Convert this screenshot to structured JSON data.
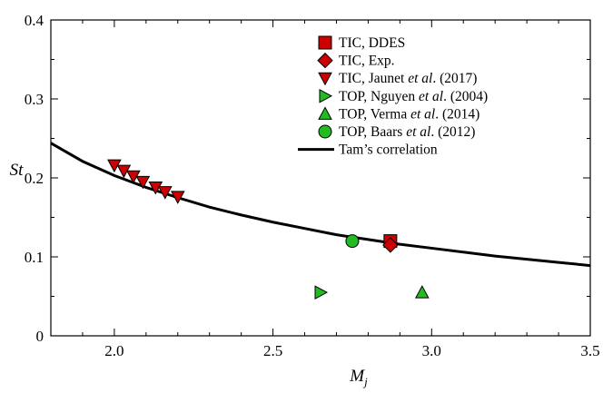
{
  "chart_data": {
    "type": "scatter",
    "xlabel": "M",
    "xlabel_sub": "j",
    "ylabel": "St",
    "xlim": [
      1.8,
      3.5
    ],
    "ylim": [
      0,
      0.4
    ],
    "x_ticks": [
      2.0,
      2.5,
      3.0,
      3.5
    ],
    "x_tick_labels": [
      "2.0",
      "2.5",
      "3.0",
      "3.5"
    ],
    "y_ticks": [
      0,
      0.1,
      0.2,
      0.3,
      0.4
    ],
    "y_tick_labels": [
      "0",
      "0.1",
      "0.2",
      "0.3",
      "0.4"
    ],
    "legend_position": "top-right",
    "series": [
      {
        "name_parts": [
          {
            "text": "TIC, DDES",
            "italic": false
          }
        ],
        "marker": "square",
        "color": "#cc0000",
        "points": [
          {
            "x": 2.87,
            "y": 0.12
          }
        ]
      },
      {
        "name_parts": [
          {
            "text": "TIC, Exp.",
            "italic": false
          }
        ],
        "marker": "diamond",
        "color": "#cc0000",
        "points": [
          {
            "x": 2.87,
            "y": 0.115
          }
        ]
      },
      {
        "name_parts": [
          {
            "text": "TIC, Jaunet ",
            "italic": false
          },
          {
            "text": "et al",
            "italic": true
          },
          {
            "text": ". (2017)",
            "italic": false
          }
        ],
        "marker": "triangle-down",
        "color": "#cc0000",
        "points": [
          {
            "x": 2.0,
            "y": 0.216
          },
          {
            "x": 2.03,
            "y": 0.209
          },
          {
            "x": 2.06,
            "y": 0.202
          },
          {
            "x": 2.09,
            "y": 0.195
          },
          {
            "x": 2.13,
            "y": 0.188
          },
          {
            "x": 2.16,
            "y": 0.182
          },
          {
            "x": 2.2,
            "y": 0.176
          }
        ]
      },
      {
        "name_parts": [
          {
            "text": "TOP, Nguyen ",
            "italic": false
          },
          {
            "text": "et al",
            "italic": true
          },
          {
            "text": ". (2004)",
            "italic": false
          }
        ],
        "marker": "triangle-right",
        "color": "#22bb22",
        "points": [
          {
            "x": 2.65,
            "y": 0.055
          }
        ]
      },
      {
        "name_parts": [
          {
            "text": "TOP, Verma ",
            "italic": false
          },
          {
            "text": "et al",
            "italic": true
          },
          {
            "text": ". (2014)",
            "italic": false
          }
        ],
        "marker": "triangle-up",
        "color": "#22bb22",
        "points": [
          {
            "x": 2.97,
            "y": 0.055
          }
        ]
      },
      {
        "name_parts": [
          {
            "text": "TOP, Baars ",
            "italic": false
          },
          {
            "text": "et al",
            "italic": true
          },
          {
            "text": ". (2012)",
            "italic": false
          }
        ],
        "marker": "circle",
        "color": "#22bb22",
        "points": [
          {
            "x": 2.75,
            "y": 0.12
          }
        ]
      }
    ],
    "line_series": {
      "name": "Tam’s correlation",
      "color": "#000000",
      "x": [
        1.8,
        1.9,
        2.0,
        2.1,
        2.2,
        2.3,
        2.4,
        2.5,
        2.6,
        2.7,
        2.8,
        2.9,
        3.0,
        3.1,
        3.2,
        3.3,
        3.4,
        3.5
      ],
      "y": [
        0.244,
        0.221,
        0.203,
        0.188,
        0.175,
        0.163,
        0.153,
        0.144,
        0.136,
        0.128,
        0.122,
        0.116,
        0.111,
        0.106,
        0.101,
        0.097,
        0.093,
        0.089
      ]
    }
  }
}
